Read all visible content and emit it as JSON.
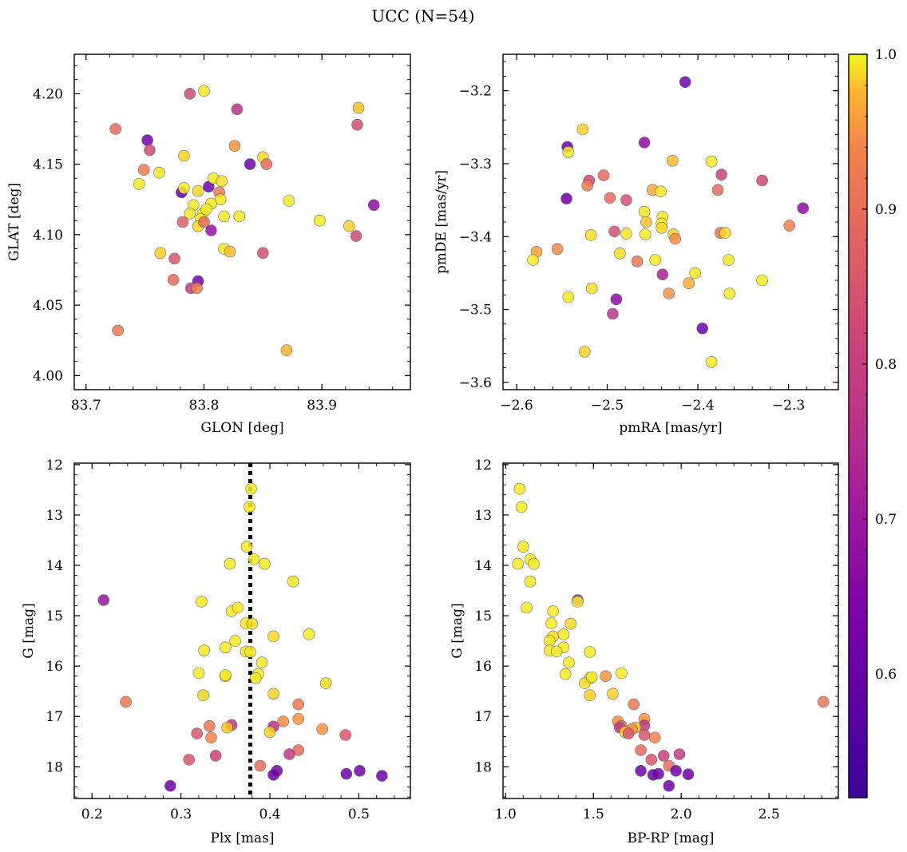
{
  "figure": {
    "title": "UCC (N=54)"
  },
  "colorbar": {
    "cmap": "plasma",
    "vmin": 0.52,
    "vmax": 1.0,
    "ticks": [
      0.6,
      0.7,
      0.8,
      0.9,
      1.0
    ],
    "ticklabels": [
      "0.6",
      "0.7",
      "0.8",
      "0.9",
      "1.0"
    ]
  },
  "chart_data": [
    {
      "type": "scatter",
      "xlabel": "GLON [deg]",
      "ylabel": "GLAT [deg]",
      "xlim": [
        83.69,
        83.975
      ],
      "ylim": [
        3.99,
        4.228
      ],
      "xticks": [
        83.7,
        83.8,
        83.9
      ],
      "xticklabels": [
        "83.7",
        "83.8",
        "83.9"
      ],
      "xminor": 0.02,
      "yticks": [
        4.0,
        4.05,
        4.1,
        4.15,
        4.2
      ],
      "yticklabels": [
        "4.00",
        "4.05",
        "4.10",
        "4.15",
        "4.20"
      ],
      "yminor": 0.01,
      "points": [
        [
          83.725,
          4.175,
          0.8
        ],
        [
          83.752,
          4.167,
          0.55
        ],
        [
          83.754,
          4.16,
          0.74
        ],
        [
          83.749,
          4.146,
          0.83
        ],
        [
          83.745,
          4.136,
          0.98
        ],
        [
          83.762,
          4.144,
          0.98
        ],
        [
          83.783,
          4.156,
          0.95
        ],
        [
          83.788,
          4.2,
          0.74
        ],
        [
          83.8,
          4.202,
          0.98
        ],
        [
          83.828,
          4.189,
          0.68
        ],
        [
          83.826,
          4.163,
          0.86
        ],
        [
          83.839,
          4.15,
          0.55
        ],
        [
          83.85,
          4.155,
          0.96
        ],
        [
          83.853,
          4.15,
          0.8
        ],
        [
          83.931,
          4.19,
          0.93
        ],
        [
          83.93,
          4.178,
          0.75
        ],
        [
          83.944,
          4.121,
          0.6
        ],
        [
          83.781,
          4.13,
          0.53
        ],
        [
          83.783,
          4.133,
          0.98
        ],
        [
          83.795,
          4.131,
          0.96
        ],
        [
          83.804,
          4.134,
          0.55
        ],
        [
          83.808,
          4.14,
          0.98
        ],
        [
          83.815,
          4.138,
          0.97
        ],
        [
          83.813,
          4.13,
          0.82
        ],
        [
          83.814,
          4.125,
          0.98
        ],
        [
          83.806,
          4.122,
          0.98
        ],
        [
          83.791,
          4.121,
          0.98
        ],
        [
          83.788,
          4.115,
          0.98
        ],
        [
          83.799,
          4.115,
          0.98
        ],
        [
          83.802,
          4.118,
          0.98
        ],
        [
          83.797,
          4.111,
          0.98
        ],
        [
          83.817,
          4.113,
          0.98
        ],
        [
          83.83,
          4.113,
          0.98
        ],
        [
          83.795,
          4.106,
          0.96
        ],
        [
          83.8,
          4.109,
          0.8
        ],
        [
          83.782,
          4.109,
          0.78
        ],
        [
          83.806,
          4.103,
          0.62
        ],
        [
          83.817,
          4.09,
          0.98
        ],
        [
          83.822,
          4.088,
          0.92
        ],
        [
          83.85,
          4.087,
          0.75
        ],
        [
          83.872,
          4.124,
          0.98
        ],
        [
          83.898,
          4.11,
          0.98
        ],
        [
          83.923,
          4.106,
          0.95
        ],
        [
          83.929,
          4.099,
          0.74
        ],
        [
          83.763,
          4.087,
          0.95
        ],
        [
          83.775,
          4.083,
          0.76
        ],
        [
          83.774,
          4.068,
          0.8
        ],
        [
          83.795,
          4.067,
          0.55
        ],
        [
          83.789,
          4.062,
          0.7
        ],
        [
          83.794,
          4.062,
          0.83
        ],
        [
          83.727,
          4.032,
          0.82
        ],
        [
          83.87,
          4.018,
          0.91
        ]
      ]
    },
    {
      "type": "scatter",
      "xlabel": "pmRA [mas/yr]",
      "ylabel": "pmDE [mas/yr]",
      "xlim": [
        -2.615,
        -2.245
      ],
      "ylim": [
        -3.61,
        -3.15
      ],
      "xticks": [
        -2.6,
        -2.5,
        -2.4,
        -2.3
      ],
      "xticklabels": [
        "−2.6",
        "−2.5",
        "−2.4",
        "−2.3"
      ],
      "xminor": 0.02,
      "yticks": [
        -3.6,
        -3.5,
        -3.4,
        -3.3,
        -3.2
      ],
      "yticklabels": [
        "−3.6",
        "−3.5",
        "−3.4",
        "−3.3",
        "−3.2"
      ],
      "yminor": 0.02,
      "points": [
        [
          -2.414,
          -3.188,
          0.55
        ],
        [
          -2.527,
          -3.253,
          0.95
        ],
        [
          -2.544,
          -3.277,
          0.55
        ],
        [
          -2.543,
          -3.284,
          0.98
        ],
        [
          -2.459,
          -3.271,
          0.6
        ],
        [
          -2.428,
          -3.296,
          0.92
        ],
        [
          -2.385,
          -3.297,
          0.98
        ],
        [
          -2.374,
          -3.315,
          0.72
        ],
        [
          -2.329,
          -3.323,
          0.74
        ],
        [
          -2.504,
          -3.316,
          0.8
        ],
        [
          -2.52,
          -3.323,
          0.74
        ],
        [
          -2.522,
          -3.33,
          0.83
        ],
        [
          -2.545,
          -3.348,
          0.55
        ],
        [
          -2.497,
          -3.347,
          0.8
        ],
        [
          -2.479,
          -3.35,
          0.75
        ],
        [
          -2.45,
          -3.336,
          0.9
        ],
        [
          -2.441,
          -3.338,
          0.98
        ],
        [
          -2.378,
          -3.336,
          0.8
        ],
        [
          -2.284,
          -3.361,
          0.6
        ],
        [
          -2.459,
          -3.366,
          0.98
        ],
        [
          -2.439,
          -3.373,
          0.98
        ],
        [
          -2.457,
          -3.38,
          0.93
        ],
        [
          -2.44,
          -3.382,
          0.98
        ],
        [
          -2.44,
          -3.388,
          0.96
        ],
        [
          -2.427,
          -3.397,
          0.95
        ],
        [
          -2.425,
          -3.403,
          0.85
        ],
        [
          -2.375,
          -3.395,
          0.82
        ],
        [
          -2.37,
          -3.395,
          0.96
        ],
        [
          -2.299,
          -3.385,
          0.83
        ],
        [
          -2.518,
          -3.398,
          0.96
        ],
        [
          -2.492,
          -3.393,
          0.75
        ],
        [
          -2.479,
          -3.396,
          0.97
        ],
        [
          -2.458,
          -3.397,
          0.98
        ],
        [
          -2.578,
          -3.421,
          0.88
        ],
        [
          -2.582,
          -3.432,
          0.98
        ],
        [
          -2.555,
          -3.417,
          0.85
        ],
        [
          -2.486,
          -3.423,
          0.97
        ],
        [
          -2.467,
          -3.434,
          0.82
        ],
        [
          -2.447,
          -3.432,
          0.98
        ],
        [
          -2.366,
          -3.432,
          0.98
        ],
        [
          -2.439,
          -3.452,
          0.65
        ],
        [
          -2.403,
          -3.45,
          0.98
        ],
        [
          -2.41,
          -3.464,
          0.9
        ],
        [
          -2.517,
          -3.471,
          0.97
        ],
        [
          -2.543,
          -3.483,
          0.98
        ],
        [
          -2.432,
          -3.478,
          0.86
        ],
        [
          -2.365,
          -3.478,
          0.98
        ],
        [
          -2.329,
          -3.46,
          0.98
        ],
        [
          -2.49,
          -3.486,
          0.6
        ],
        [
          -2.494,
          -3.506,
          0.68
        ],
        [
          -2.395,
          -3.526,
          0.55
        ],
        [
          -2.525,
          -3.558,
          0.95
        ],
        [
          -2.385,
          -3.572,
          0.98
        ]
      ]
    },
    {
      "type": "scatter",
      "xlabel": "Plx [mas]",
      "ylabel": "G [mag]",
      "xlim": [
        0.18,
        0.558
      ],
      "ylim": [
        18.63,
        11.97
      ],
      "xticks": [
        0.2,
        0.3,
        0.4,
        0.5
      ],
      "xticklabels": [
        "0.2",
        "0.3",
        "0.4",
        "0.5"
      ],
      "xminor": 0.02,
      "yticks": [
        12,
        13,
        14,
        15,
        16,
        17,
        18
      ],
      "yticklabels": [
        "12",
        "13",
        "14",
        "15",
        "16",
        "17",
        "18"
      ],
      "yminor": 0.2,
      "vline": 0.378,
      "points": [
        [
          0.379,
          12.48,
          0.98
        ],
        [
          0.377,
          12.84,
          0.98
        ],
        [
          0.374,
          13.63,
          0.98
        ],
        [
          0.382,
          13.88,
          0.98
        ],
        [
          0.355,
          13.97,
          0.98
        ],
        [
          0.394,
          13.97,
          0.98
        ],
        [
          0.426,
          14.32,
          0.98
        ],
        [
          0.323,
          14.72,
          0.98
        ],
        [
          0.213,
          14.69,
          0.62
        ],
        [
          0.357,
          14.91,
          0.98
        ],
        [
          0.364,
          14.84,
          0.98
        ],
        [
          0.373,
          15.15,
          0.98
        ],
        [
          0.38,
          15.16,
          0.96
        ],
        [
          0.404,
          15.41,
          0.96
        ],
        [
          0.444,
          15.37,
          0.98
        ],
        [
          0.361,
          15.5,
          0.98
        ],
        [
          0.35,
          15.63,
          0.98
        ],
        [
          0.326,
          15.69,
          0.98
        ],
        [
          0.373,
          15.71,
          0.98
        ],
        [
          0.378,
          15.72,
          0.98
        ],
        [
          0.391,
          15.93,
          0.98
        ],
        [
          0.387,
          16.16,
          0.98
        ],
        [
          0.384,
          16.24,
          0.98
        ],
        [
          0.32,
          16.14,
          0.98
        ],
        [
          0.35,
          16.2,
          0.96
        ],
        [
          0.35,
          16.18,
          0.98
        ],
        [
          0.463,
          16.34,
          0.96
        ],
        [
          0.404,
          16.55,
          0.95
        ],
        [
          0.325,
          16.58,
          0.95
        ],
        [
          0.238,
          16.71,
          0.82
        ],
        [
          0.432,
          16.76,
          0.82
        ],
        [
          0.432,
          17.05,
          0.86
        ],
        [
          0.415,
          17.1,
          0.85
        ],
        [
          0.332,
          17.19,
          0.82
        ],
        [
          0.357,
          17.17,
          0.7
        ],
        [
          0.352,
          17.22,
          0.93
        ],
        [
          0.404,
          17.2,
          0.68
        ],
        [
          0.459,
          17.25,
          0.86
        ],
        [
          0.4,
          17.31,
          0.95
        ],
        [
          0.318,
          17.34,
          0.76
        ],
        [
          0.485,
          17.37,
          0.76
        ],
        [
          0.334,
          17.42,
          0.84
        ],
        [
          0.432,
          17.67,
          0.8
        ],
        [
          0.422,
          17.75,
          0.7
        ],
        [
          0.339,
          17.78,
          0.72
        ],
        [
          0.309,
          17.86,
          0.76
        ],
        [
          0.389,
          17.98,
          0.8
        ],
        [
          0.408,
          18.08,
          0.55
        ],
        [
          0.404,
          18.16,
          0.55
        ],
        [
          0.486,
          18.14,
          0.55
        ],
        [
          0.501,
          18.08,
          0.55
        ],
        [
          0.526,
          18.18,
          0.55
        ],
        [
          0.288,
          18.38,
          0.55
        ]
      ]
    },
    {
      "type": "scatter",
      "xlabel": "BP-RP [mag]",
      "ylabel": "G [mag]",
      "xlim": [
        0.985,
        2.895
      ],
      "ylim": [
        18.63,
        11.97
      ],
      "xticks": [
        1.0,
        1.5,
        2.0,
        2.5
      ],
      "xticklabels": [
        "1.0",
        "1.5",
        "2.0",
        "2.5"
      ],
      "xminor": 0.1,
      "yticks": [
        12,
        13,
        14,
        15,
        16,
        17,
        18
      ],
      "yticklabels": [
        "12",
        "13",
        "14",
        "15",
        "16",
        "17",
        "18"
      ],
      "yminor": 0.2,
      "points": [
        [
          1.08,
          12.48,
          0.98
        ],
        [
          1.09,
          12.84,
          0.98
        ],
        [
          1.1,
          13.63,
          0.98
        ],
        [
          1.14,
          13.88,
          0.98
        ],
        [
          1.07,
          13.97,
          0.98
        ],
        [
          1.16,
          13.97,
          0.98
        ],
        [
          1.14,
          14.32,
          0.98
        ],
        [
          1.41,
          14.69,
          0.62
        ],
        [
          1.41,
          14.72,
          0.98
        ],
        [
          1.27,
          14.91,
          0.98
        ],
        [
          1.12,
          14.84,
          0.98
        ],
        [
          1.26,
          15.15,
          0.98
        ],
        [
          1.37,
          15.16,
          0.96
        ],
        [
          1.27,
          15.41,
          0.96
        ],
        [
          1.33,
          15.37,
          0.98
        ],
        [
          1.25,
          15.5,
          0.98
        ],
        [
          1.33,
          15.63,
          0.98
        ],
        [
          1.25,
          15.69,
          0.98
        ],
        [
          1.29,
          15.71,
          0.98
        ],
        [
          1.48,
          15.72,
          0.98
        ],
        [
          1.36,
          15.93,
          0.98
        ],
        [
          1.34,
          16.16,
          0.98
        ],
        [
          1.48,
          16.24,
          0.98
        ],
        [
          1.45,
          16.34,
          0.96
        ],
        [
          1.49,
          16.22,
          0.98
        ],
        [
          1.66,
          16.14,
          0.98
        ],
        [
          1.57,
          16.2,
          0.86
        ],
        [
          1.61,
          16.55,
          0.95
        ],
        [
          1.48,
          16.58,
          0.95
        ],
        [
          1.73,
          16.76,
          0.82
        ],
        [
          2.81,
          16.71,
          0.82
        ],
        [
          1.79,
          17.05,
          0.86
        ],
        [
          1.64,
          17.1,
          0.85
        ],
        [
          1.79,
          17.18,
          0.7
        ],
        [
          1.66,
          17.19,
          0.82
        ],
        [
          1.74,
          17.22,
          0.93
        ],
        [
          1.65,
          17.22,
          0.7
        ],
        [
          1.72,
          17.25,
          0.86
        ],
        [
          1.68,
          17.31,
          0.95
        ],
        [
          1.7,
          17.34,
          0.76
        ],
        [
          1.79,
          17.37,
          0.76
        ],
        [
          1.85,
          17.42,
          0.84
        ],
        [
          1.77,
          17.67,
          0.8
        ],
        [
          1.99,
          17.75,
          0.7
        ],
        [
          1.9,
          17.78,
          0.72
        ],
        [
          1.83,
          17.86,
          0.76
        ],
        [
          1.93,
          17.98,
          0.8
        ],
        [
          1.77,
          18.08,
          0.55
        ],
        [
          1.97,
          18.08,
          0.55
        ],
        [
          1.87,
          18.14,
          0.55
        ],
        [
          2.04,
          18.15,
          0.55
        ],
        [
          1.84,
          18.16,
          0.55
        ],
        [
          1.93,
          18.38,
          0.55
        ]
      ]
    }
  ]
}
